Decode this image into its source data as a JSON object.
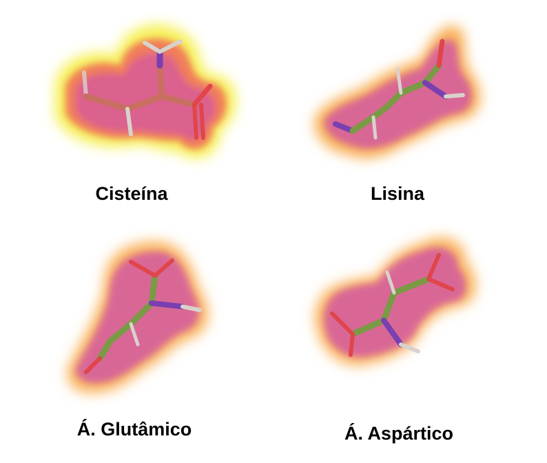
{
  "molecules": [
    {
      "name": "Cisteína",
      "atom_color": "#c96f62",
      "surface": "yellow-pink"
    },
    {
      "name": "Lisina",
      "atom_color": "#7a9a45",
      "surface": "orange-pink"
    },
    {
      "name": "Á. Glutâmico",
      "atom_color": "#7a9a45",
      "surface": "orange-pink"
    },
    {
      "name": "Á. Aspártico",
      "atom_color": "#7a9a45",
      "surface": "orange-pink"
    }
  ],
  "colors": {
    "carbon_cys": "#c96f62",
    "carbon_other": "#7a9a45",
    "nitrogen": "#7a3fb0",
    "oxygen": "#e0454a",
    "hydrogen": "#d9d2cc",
    "surface_inner": "#d45aa0",
    "surface_mid": "#f06a5a",
    "surface_outer_cys": "#f5f03a",
    "surface_outer": "#f7a23a"
  }
}
